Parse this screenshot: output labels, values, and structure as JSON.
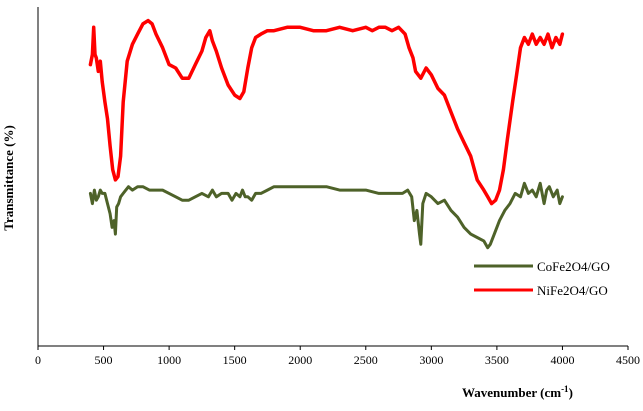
{
  "chart_data": {
    "type": "line",
    "title": "",
    "xlabel": "Wavenumber (cm",
    "xlabel_sup": "-1",
    "xlabel_close": ")",
    "ylabel": "Transmittance (%)",
    "xlim": [
      0,
      4500
    ],
    "ylim": [
      0,
      100
    ],
    "x_ticks": [
      0,
      500,
      1000,
      1500,
      2000,
      2500,
      3000,
      3500,
      4000,
      4500
    ],
    "y_ticks_visible": false,
    "grid": false,
    "legend_position": "bottom-right",
    "series": [
      {
        "name": "CoFe2O4/GO",
        "color": "#4e6229",
        "x": [
          400,
          415,
          430,
          445,
          460,
          475,
          490,
          510,
          530,
          550,
          565,
          580,
          590,
          600,
          615,
          630,
          650,
          670,
          690,
          720,
          760,
          800,
          850,
          900,
          950,
          1000,
          1050,
          1100,
          1150,
          1200,
          1250,
          1300,
          1330,
          1360,
          1400,
          1450,
          1480,
          1510,
          1540,
          1560,
          1580,
          1600,
          1630,
          1660,
          1700,
          1750,
          1800,
          1900,
          2000,
          2100,
          2200,
          2300,
          2400,
          2500,
          2600,
          2700,
          2780,
          2820,
          2850,
          2870,
          2890,
          2910,
          2920,
          2935,
          2960,
          3000,
          3050,
          3100,
          3150,
          3200,
          3250,
          3300,
          3350,
          3400,
          3430,
          3450,
          3480,
          3520,
          3560,
          3600,
          3640,
          3680,
          3710,
          3740,
          3770,
          3800,
          3830,
          3860,
          3880,
          3900,
          3930,
          3960,
          3980,
          4000
        ],
        "y": [
          45,
          42,
          46,
          43,
          44,
          46,
          45,
          45,
          42,
          39,
          35,
          37,
          33,
          41,
          42,
          44,
          45,
          46,
          47,
          46,
          47,
          47,
          46,
          46,
          46,
          45,
          44,
          43,
          43,
          44,
          45,
          44,
          46,
          44,
          45,
          45,
          43,
          45,
          44,
          46,
          44,
          44,
          43,
          45,
          45,
          46,
          47,
          47,
          47,
          47,
          47,
          46,
          46,
          46,
          45,
          45,
          45,
          46,
          44,
          37,
          40,
          33,
          30,
          42,
          45,
          44,
          42,
          43,
          40,
          38,
          35,
          33,
          32,
          31,
          29,
          30,
          33,
          37,
          40,
          42,
          45,
          44,
          48,
          45,
          46,
          44,
          48,
          42,
          46,
          47,
          44,
          46,
          42,
          44
        ]
      },
      {
        "name": "NiFe2O4/GO",
        "color": "#ff0000",
        "x": [
          400,
          415,
          425,
          435,
          445,
          460,
          475,
          490,
          510,
          530,
          550,
          570,
          590,
          610,
          630,
          650,
          680,
          720,
          760,
          800,
          840,
          870,
          900,
          950,
          1000,
          1050,
          1100,
          1150,
          1200,
          1250,
          1280,
          1310,
          1330,
          1360,
          1400,
          1450,
          1500,
          1540,
          1570,
          1600,
          1630,
          1660,
          1700,
          1750,
          1800,
          1900,
          2000,
          2100,
          2200,
          2300,
          2400,
          2500,
          2550,
          2600,
          2650,
          2700,
          2750,
          2800,
          2830,
          2860,
          2880,
          2920,
          2960,
          3000,
          3050,
          3100,
          3150,
          3200,
          3250,
          3300,
          3350,
          3400,
          3430,
          3460,
          3490,
          3520,
          3550,
          3580,
          3620,
          3650,
          3680,
          3710,
          3740,
          3770,
          3800,
          3830,
          3860,
          3890,
          3920,
          3950,
          3980,
          4000
        ],
        "y": [
          83,
          86,
          94,
          86,
          85,
          81,
          84,
          78,
          72,
          67,
          59,
          52,
          49,
          50,
          56,
          72,
          84,
          89,
          92,
          95,
          96,
          95,
          92,
          88,
          83,
          82,
          79,
          79,
          83,
          87,
          91,
          93,
          90,
          87,
          82,
          77,
          74,
          73,
          75,
          82,
          88,
          91,
          92,
          93,
          93,
          94,
          94,
          93,
          93,
          94,
          93,
          94,
          93,
          94,
          94,
          93,
          94,
          92,
          88,
          85,
          81,
          79,
          82,
          80,
          76,
          74,
          69,
          64,
          60,
          56,
          49,
          46,
          44,
          42,
          43,
          46,
          52,
          61,
          72,
          80,
          88,
          91,
          89,
          92,
          89,
          91,
          89,
          92,
          88,
          91,
          89,
          92
        ]
      }
    ]
  }
}
